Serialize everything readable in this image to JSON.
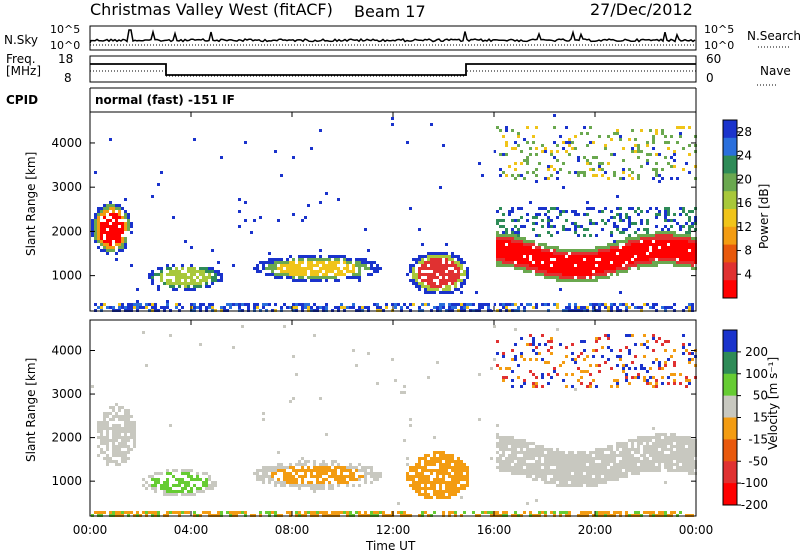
{
  "header": {
    "station": "Christmas Valley West (fitACF)",
    "beam": "Beam 17",
    "date": "27/Dec/2012"
  },
  "panels": {
    "nsky_label": "N.Sky",
    "nsky_ticks": [
      "10^5",
      "10^0"
    ],
    "nsearch_label": "N.Search",
    "nsearch_ticks": [
      "10^5",
      "10^0"
    ],
    "freq_label_1": "Freq.",
    "freq_label_2": "[MHz]",
    "freq_ticks": [
      "18",
      "8"
    ],
    "nave_label": "Nave",
    "nave_ticks": [
      "60",
      "0"
    ],
    "cpid_label": "CPID",
    "cpid_text": "normal (fast) -151 IF"
  },
  "chart_data": [
    {
      "type": "heatmap",
      "name": "power",
      "ylabel": "Slant Range [km]",
      "yticks": [
        "1000",
        "2000",
        "3000",
        "4000"
      ],
      "xticks": [
        "00:00",
        "04:00",
        "08:00",
        "12:00",
        "16:00",
        "20:00",
        "00:00"
      ],
      "colorbar_label": "Power [dB]",
      "colorbar_ticks": [
        "4",
        "8",
        "12",
        "16",
        "20",
        "24",
        "28"
      ],
      "colors": [
        "#1a33cc",
        "#2a6fdc",
        "#2e8b57",
        "#6aa84f",
        "#a8c83a",
        "#f0c419",
        "#f39c12",
        "#e8590c",
        "#e03131",
        "#ff0000"
      ],
      "range": [
        0,
        30
      ]
    },
    {
      "type": "heatmap",
      "name": "velocity",
      "ylabel": "Slant Range [km]",
      "yticks": [
        "1000",
        "2000",
        "3000",
        "4000"
      ],
      "xticks": [
        "00:00",
        "04:00",
        "08:00",
        "12:00",
        "16:00",
        "20:00",
        "00:00"
      ],
      "xlabel": "Time UT",
      "colorbar_label": "Velocity [m s⁻¹]",
      "colorbar_ticks": [
        "200",
        "100",
        "50",
        "15",
        "-15",
        "-50",
        "-100",
        "-200"
      ],
      "colors": [
        "#1a33cc",
        "#2e8b57",
        "#66cc33",
        "#c8c8c0",
        "#f39c12",
        "#e8590c",
        "#e03131",
        "#ff0000"
      ],
      "range": [
        -250,
        250
      ]
    }
  ]
}
